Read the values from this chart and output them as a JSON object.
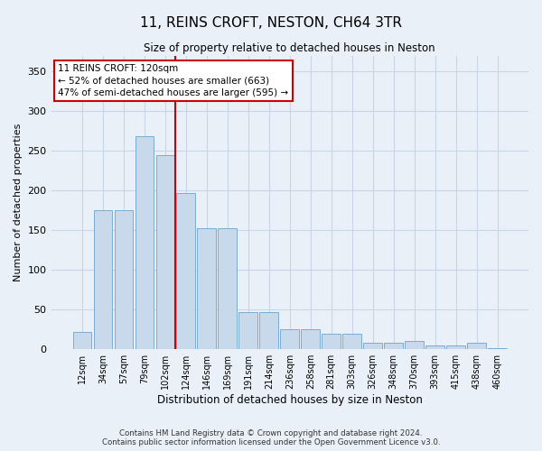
{
  "title": "11, REINS CROFT, NESTON, CH64 3TR",
  "subtitle": "Size of property relative to detached houses in Neston",
  "xlabel": "Distribution of detached houses by size in Neston",
  "ylabel": "Number of detached properties",
  "bar_labels": [
    "12sqm",
    "34sqm",
    "57sqm",
    "79sqm",
    "102sqm",
    "124sqm",
    "146sqm",
    "169sqm",
    "191sqm",
    "214sqm",
    "236sqm",
    "258sqm",
    "281sqm",
    "303sqm",
    "326sqm",
    "348sqm",
    "370sqm",
    "393sqm",
    "415sqm",
    "438sqm",
    "460sqm"
  ],
  "bar_values": [
    22,
    175,
    175,
    268,
    245,
    197,
    153,
    153,
    47,
    47,
    25,
    25,
    20,
    20,
    8,
    8,
    10,
    5,
    5,
    8,
    1
  ],
  "bar_color": "#c9d9ec",
  "bar_edge_color": "#7aadd4",
  "ylim": [
    0,
    370
  ],
  "yticks": [
    0,
    50,
    100,
    150,
    200,
    250,
    300,
    350
  ],
  "vline_x_index": 4.5,
  "annotation_text": "11 REINS CROFT: 120sqm\n← 52% of detached houses are smaller (663)\n47% of semi-detached houses are larger (595) →",
  "annotation_box_color": "#ffffff",
  "annotation_box_edge": "#cc0000",
  "vline_color": "#cc0000",
  "grid_color": "#c8d4e8",
  "footer": "Contains HM Land Registry data © Crown copyright and database right 2024.\nContains public sector information licensed under the Open Government Licence v3.0.",
  "background_color": "#eaf0f8",
  "plot_background": "#eaf0f8"
}
